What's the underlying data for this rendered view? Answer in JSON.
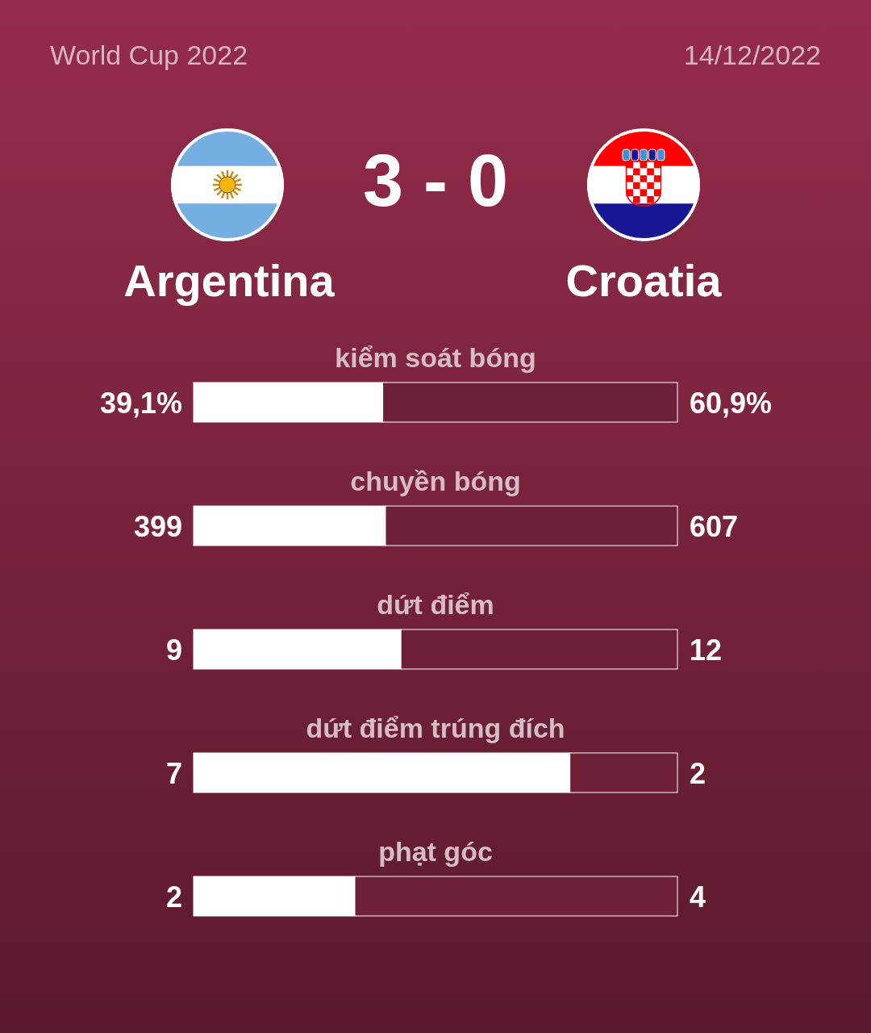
{
  "chart_data": [
    {
      "type": "bar",
      "orientation": "horizontal",
      "stacked": true,
      "title": "World Cup 2022",
      "subtitle": "14/12/2022",
      "annotations": [
        "3 - 0"
      ],
      "legend": "top",
      "tick_labels": "y",
      "xlim": [
        0,
        100
      ],
      "categories": [
        "kiểm soát bóng"
      ],
      "series": [
        {
          "name": "Argentina",
          "color": "#ffffff",
          "values": [
            39.1
          ],
          "value_labels": [
            "39,1%"
          ]
        },
        {
          "name": "Croatia",
          "color": "#6e2036",
          "values": [
            60.9
          ],
          "value_labels": [
            "60,9%"
          ]
        }
      ]
    },
    {
      "type": "bar",
      "orientation": "horizontal",
      "stacked": true,
      "tick_labels": "y",
      "xlim": [
        0,
        1006
      ],
      "categories": [
        "chuyền bóng"
      ],
      "series": [
        {
          "color": "#ffffff",
          "values": [
            399
          ],
          "value_labels": [
            "399"
          ]
        },
        {
          "color": "#6e2036",
          "values": [
            607
          ],
          "value_labels": [
            "607"
          ]
        }
      ]
    },
    {
      "type": "bar",
      "orientation": "horizontal",
      "stacked": true,
      "tick_labels": "y",
      "xlim": [
        0,
        21
      ],
      "categories": [
        "dứt điểm"
      ],
      "series": [
        {
          "color": "#ffffff",
          "values": [
            9
          ],
          "value_labels": [
            "9"
          ]
        },
        {
          "color": "#6e2036",
          "values": [
            12
          ],
          "value_labels": [
            "12"
          ]
        }
      ]
    },
    {
      "type": "bar",
      "orientation": "horizontal",
      "stacked": true,
      "tick_labels": "y",
      "xlim": [
        0,
        9
      ],
      "categories": [
        "dứt điểm trúng đích"
      ],
      "series": [
        {
          "color": "#ffffff",
          "values": [
            7
          ],
          "value_labels": [
            "7"
          ]
        },
        {
          "color": "#6e2036",
          "values": [
            2
          ],
          "value_labels": [
            "2"
          ]
        }
      ]
    },
    {
      "type": "bar",
      "orientation": "horizontal",
      "stacked": true,
      "tick_labels": "y",
      "xlim": [
        0,
        6
      ],
      "categories": [
        "phạt góc"
      ],
      "series": [
        {
          "color": "#ffffff",
          "values": [
            2
          ],
          "value_labels": [
            "2"
          ]
        },
        {
          "color": "#6e2036",
          "values": [
            4
          ],
          "value_labels": [
            "4"
          ]
        }
      ]
    }
  ]
}
